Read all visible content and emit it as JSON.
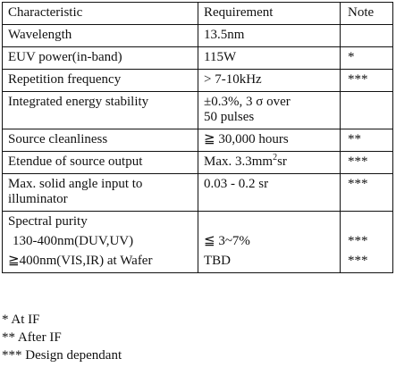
{
  "table": {
    "headers": [
      "Characteristic",
      "Requirement",
      "Note"
    ],
    "rows": [
      {
        "characteristic": "Wavelength",
        "requirement": "13.5nm",
        "note": ""
      },
      {
        "characteristic": "EUV power(in-band)",
        "requirement": "115W",
        "note": "*"
      },
      {
        "characteristic": "Repetition frequency",
        "requirement": "> 7-10kHz",
        "note": "***"
      },
      {
        "characteristic": "Integrated energy stability",
        "requirement_line1": "±0.3%, 3 σ  over",
        "requirement_line2": "50 pulses",
        "note": ""
      },
      {
        "characteristic": "Source cleanliness",
        "requirement": "≧ 30,000 hours",
        "note": "**"
      },
      {
        "characteristic": "Etendue of source output",
        "requirement_pre": "Max. 3.3mm",
        "requirement_sup": "2",
        "requirement_post": "sr",
        "note": "***"
      },
      {
        "characteristic_line1": "Max. solid angle input to",
        "characteristic_line2": "illuminator",
        "requirement": "0.03 - 0.2 sr",
        "note": "***"
      },
      {
        "characteristic": "Spectral purity",
        "sub_rows": [
          {
            "label": "130-400nm(DUV,UV)",
            "requirement": "≦ 3~7%",
            "note": "***"
          },
          {
            "label": "≧400nm(VIS,IR) at Wafer",
            "requirement": "TBD",
            "note": "***"
          }
        ]
      }
    ]
  },
  "footnotes": [
    "* At IF",
    "** After IF",
    "*** Design dependant"
  ]
}
